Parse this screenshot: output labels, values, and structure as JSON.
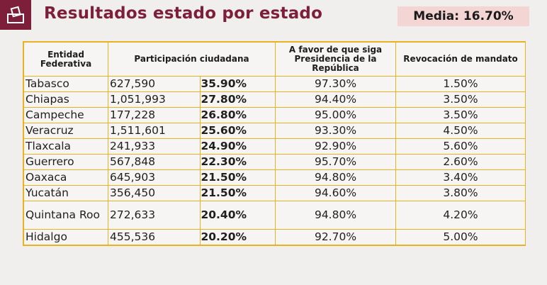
{
  "header": {
    "title": "Resultados estado por estado",
    "media": "Media: 16.70%"
  },
  "table": {
    "headers": {
      "entidad": "Entidad Federativa",
      "participacion": "Participación ciudadana",
      "favor": "A favor de que siga Presidencia de la República",
      "revocacion": "Revocación de mandato"
    },
    "rows": [
      {
        "state": "Tabasco",
        "count": "627,590",
        "pct": "35.90%",
        "favor": "97.30%",
        "rev": "1.50%"
      },
      {
        "state": "Chiapas",
        "count": "1,051,993",
        "pct": "27.80%",
        "favor": "94.40%",
        "rev": "3.50%"
      },
      {
        "state": "Campeche",
        "count": "177,228",
        "pct": "26.80%",
        "favor": "95.00%",
        "rev": "3.50%"
      },
      {
        "state": "Veracruz",
        "count": "1,511,601",
        "pct": "25.60%",
        "favor": "93.30%",
        "rev": "4.50%"
      },
      {
        "state": "Tlaxcala",
        "count": "241,933",
        "pct": "24.90%",
        "favor": "92.90%",
        "rev": "5.60%"
      },
      {
        "state": "Guerrero",
        "count": "567,848",
        "pct": "22.30%",
        "favor": "95.70%",
        "rev": "2.60%"
      },
      {
        "state": "Oaxaca",
        "count": "645,903",
        "pct": "21.50%",
        "favor": "94.80%",
        "rev": "3.40%"
      },
      {
        "state": "Yucatán",
        "count": "356,450",
        "pct": "21.50%",
        "favor": "94.60%",
        "rev": "3.80%"
      },
      {
        "state": "Quintana Roo",
        "count": "272,633",
        "pct": "20.40%",
        "favor": "94.80%",
        "rev": "4.20%"
      },
      {
        "state": "Hidalgo",
        "count": "455,536",
        "pct": "20.20%",
        "favor": "92.70%",
        "rev": "5.00%"
      }
    ]
  },
  "colors": {
    "brand": "#7d1f3a",
    "border": "#e8b321",
    "media_bg": "#f3d6d4"
  },
  "icons": {
    "logo": "ballot-box-icon"
  }
}
